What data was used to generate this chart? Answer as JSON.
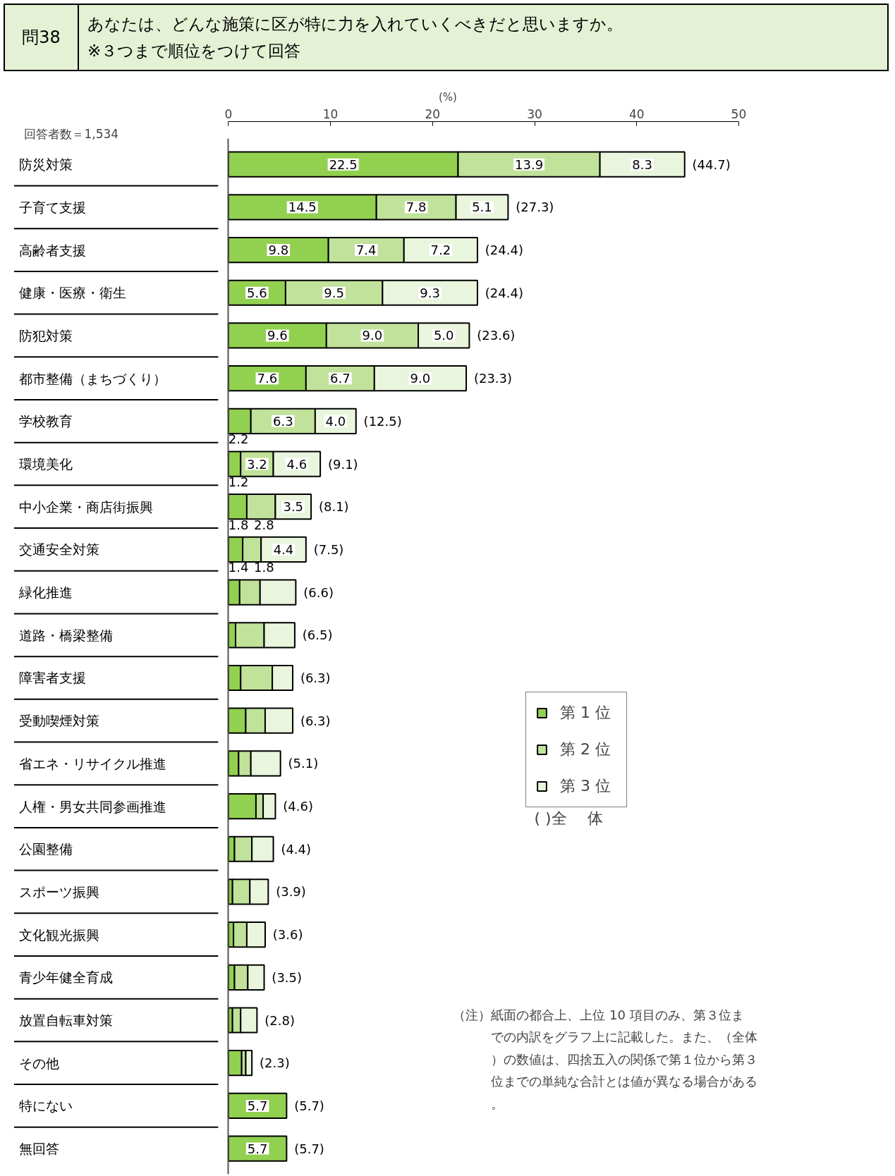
{
  "chart_data": {
    "type": "bar",
    "orientation": "horizontal",
    "stacked": true,
    "title": "問38",
    "subtitle": "あなたは、どんな施策に区が特に力を入れていくべきだと思いますか。\n※３つまで順位をつけて回答",
    "xlabel": "(%)",
    "categories": [
      "防災対策",
      "子育て支援",
      "高齢者支援",
      "健康・医療・衛生",
      "防犯対策",
      "都市整備（まちづくり）",
      "学校教育",
      "環境美化",
      "中小企業・商店街振興",
      "交通安全対策",
      "緑化推進",
      "道路・橋梁整備",
      "障害者支援",
      "受動喫煙対策",
      "省エネ・リサイクル推進",
      "人権・男女共同参画推進",
      "公園整備",
      "スポーツ振興",
      "文化観光振興",
      "青少年健全育成",
      "放置自転車対策",
      "その他",
      "特にない",
      "無回答"
    ],
    "series": [
      {
        "name": "第 1 位",
        "color": "#92d050",
        "values": [
          22.5,
          14.5,
          9.8,
          5.6,
          9.6,
          7.6,
          2.2,
          1.2,
          1.8,
          1.4,
          1.1,
          0.7,
          1.2,
          1.7,
          1.0,
          2.7,
          0.6,
          0.4,
          0.5,
          0.6,
          0.4,
          1.3,
          5.7,
          5.7
        ],
        "value_labels": [
          "22.5",
          "14.5",
          "9.8",
          "5.6",
          "9.6",
          "7.6",
          "2.2",
          "1.2",
          "1.8",
          "1.4",
          null,
          null,
          null,
          null,
          null,
          null,
          null,
          null,
          null,
          null,
          null,
          null,
          "5.7",
          "5.7"
        ]
      },
      {
        "name": "第 2 位",
        "color": "#c0e29a",
        "values": [
          13.9,
          7.8,
          7.4,
          9.5,
          9.0,
          6.7,
          6.3,
          3.2,
          2.8,
          1.8,
          2.0,
          2.8,
          3.1,
          1.9,
          1.2,
          0.7,
          1.7,
          1.7,
          1.3,
          1.3,
          0.8,
          0.4,
          null,
          null
        ],
        "value_labels": [
          "13.9",
          "7.8",
          "7.4",
          "9.5",
          "9.0",
          "6.7",
          "6.3",
          "3.2",
          "2.8",
          "1.8",
          null,
          null,
          null,
          null,
          null,
          null,
          null,
          null,
          null,
          null,
          null,
          null,
          null,
          null
        ]
      },
      {
        "name": "第 3 位",
        "color": "#e9f5dc",
        "values": [
          8.3,
          5.1,
          7.2,
          9.3,
          5.0,
          9.0,
          4.0,
          4.6,
          3.5,
          4.4,
          3.5,
          3.0,
          2.0,
          2.7,
          2.9,
          1.2,
          2.1,
          1.8,
          1.8,
          1.6,
          1.6,
          0.6,
          null,
          null
        ],
        "value_labels": [
          "8.3",
          "5.1",
          "7.2",
          "9.3",
          "5.0",
          "9.0",
          "4.0",
          "4.6",
          "3.5",
          "4.4",
          null,
          null,
          null,
          null,
          null,
          null,
          null,
          null,
          null,
          null,
          null,
          null,
          null,
          null
        ]
      }
    ],
    "totals": [
      "(44.7)",
      "(27.3)",
      "(24.4)",
      "(24.4)",
      "(23.6)",
      "(23.3)",
      "(12.5)",
      "(9.1)",
      "(8.1)",
      "(7.5)",
      "(6.6)",
      "(6.5)",
      "(6.3)",
      "(6.3)",
      "(5.1)",
      "(4.6)",
      "(4.4)",
      "(3.9)",
      "(3.6)",
      "(3.5)",
      "(2.8)",
      "(2.3)",
      "(5.7)",
      "(5.7)"
    ],
    "xlim": [
      0,
      50
    ],
    "xticks": [
      0,
      10,
      20,
      30,
      40,
      50
    ],
    "legend": "right",
    "annotations": [
      "回答者数＝1,534",
      "(  )全　 体",
      "（注）紙面の都合上、上位 10 項目のみ、第３位までの内訳をグラフ上に記載した。また、（全体）の数値は、四捨五入の関係で第１位から第３位までの単純な合計とは値が異なる場合がある。"
    ]
  }
}
